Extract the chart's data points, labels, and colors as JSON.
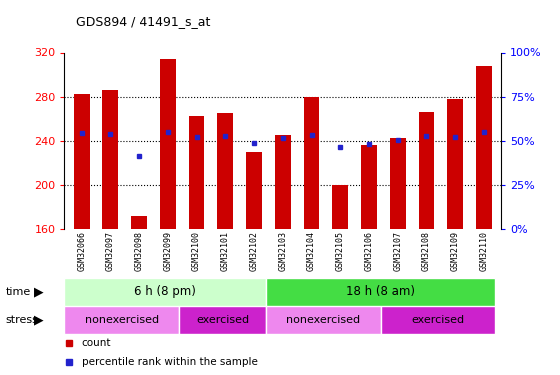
{
  "title": "GDS894 / 41491_s_at",
  "samples": [
    "GSM32066",
    "GSM32097",
    "GSM32098",
    "GSM32099",
    "GSM32100",
    "GSM32101",
    "GSM32102",
    "GSM32103",
    "GSM32104",
    "GSM32105",
    "GSM32106",
    "GSM32107",
    "GSM32108",
    "GSM32109",
    "GSM32110"
  ],
  "bar_heights": [
    282,
    286,
    172,
    314,
    262,
    265,
    230,
    245,
    280,
    200,
    236,
    242,
    266,
    278,
    308
  ],
  "bar_base": 160,
  "blue_dot_values": [
    247,
    246,
    226,
    248,
    243,
    244,
    238,
    242,
    245,
    234,
    237,
    241,
    244,
    243,
    248
  ],
  "ylim_left": [
    160,
    320
  ],
  "ylim_right": [
    0,
    100
  ],
  "left_ticks": [
    160,
    200,
    240,
    280,
    320
  ],
  "right_ticks": [
    0,
    25,
    50,
    75,
    100
  ],
  "bar_color": "#cc0000",
  "dot_color": "#2222cc",
  "bg_color": "#ffffff",
  "plot_bg": "#ffffff",
  "xtick_bg": "#cccccc",
  "time_row": [
    {
      "label": "6 h (8 pm)",
      "start": 0,
      "end": 7,
      "color": "#ccffcc"
    },
    {
      "label": "18 h (8 am)",
      "start": 7,
      "end": 15,
      "color": "#44dd44"
    }
  ],
  "stress_row": [
    {
      "label": "nonexercised",
      "start": 0,
      "end": 4,
      "color": "#ee88ee"
    },
    {
      "label": "exercised",
      "start": 4,
      "end": 7,
      "color": "#cc22cc"
    },
    {
      "label": "nonexercised",
      "start": 7,
      "end": 11,
      "color": "#ee88ee"
    },
    {
      "label": "exercised",
      "start": 11,
      "end": 15,
      "color": "#cc22cc"
    }
  ],
  "legend_items": [
    {
      "label": "count",
      "color": "#cc0000"
    },
    {
      "label": "percentile rank within the sample",
      "color": "#2222cc"
    }
  ],
  "n_samples": 15,
  "left_label_color": "red",
  "right_label_color": "blue"
}
